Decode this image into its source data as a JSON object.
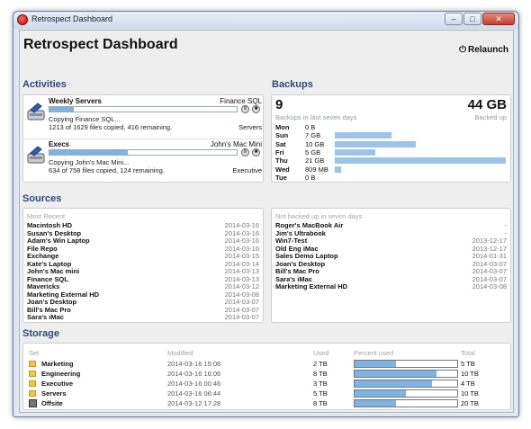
{
  "window": {
    "title": "Retrospect Dashboard"
  },
  "header": {
    "title": "Retrospect Dashboard",
    "relaunch_label": "Relaunch",
    "relaunch_icon": "power-icon"
  },
  "activities": {
    "title": "Activities",
    "jobs": [
      {
        "name": "Weekly Servers",
        "source": "Finance SQL",
        "progress": 0.13,
        "status": "Copying Finance SQL...",
        "detail": "1213 of 1629 files copied, 416 remaining.",
        "destination": "Servers"
      },
      {
        "name": "Execs",
        "source": "John's Mac Mini",
        "progress": 0.42,
        "status": "Copying John's Mac Mini...",
        "detail": "634 of 758 files copied, 124 remaining.",
        "destination": "Executive"
      }
    ]
  },
  "backups": {
    "title": "Backups",
    "count": "9",
    "count_label": "Backups in last seven days",
    "size": "44 GB",
    "size_label": "Backed up",
    "days": [
      {
        "day": "Mon",
        "value": "0 B",
        "gb": 0
      },
      {
        "day": "Sun",
        "value": "7 GB",
        "gb": 7
      },
      {
        "day": "Sat",
        "value": "10 GB",
        "gb": 10
      },
      {
        "day": "Fri",
        "value": "5 GB",
        "gb": 5
      },
      {
        "day": "Thu",
        "value": "21 GB",
        "gb": 21
      },
      {
        "day": "Wed",
        "value": "809 MB",
        "gb": 0.8
      },
      {
        "day": "Tue",
        "value": "0 B",
        "gb": 0
      }
    ]
  },
  "sources": {
    "title": "Sources",
    "recent_header": "Most Recent",
    "recent": [
      {
        "name": "Macintosh HD",
        "date": "2014-03-16"
      },
      {
        "name": "Susan's Desktop",
        "date": "2014-03-16"
      },
      {
        "name": "Adam's Win Laptop",
        "date": "2014-03-16"
      },
      {
        "name": "File Repo",
        "date": "2014-03-16"
      },
      {
        "name": "Exchange",
        "date": "2014-03-15"
      },
      {
        "name": "Kate's Laptop",
        "date": "2014-03-14"
      },
      {
        "name": "John's Mac mini",
        "date": "2014-03-13"
      },
      {
        "name": "Finance SQL",
        "date": "2014-03-13"
      },
      {
        "name": "Mavericks",
        "date": "2014-03-12"
      },
      {
        "name": "Marketing External HD",
        "date": "2014-03-08"
      },
      {
        "name": "Joan's Desktop",
        "date": "2014-03-07"
      },
      {
        "name": "Bill's Mac Pro",
        "date": "2014-03-07"
      },
      {
        "name": "Sara's iMac",
        "date": "2014-03-07"
      }
    ],
    "stale_header": "Not backed up in seven days",
    "stale": [
      {
        "name": "Roger's MacBook Air",
        "date": "-"
      },
      {
        "name": "Jim's Ultrabook",
        "date": "-"
      },
      {
        "name": "Win7-Test",
        "date": "2013-12-17"
      },
      {
        "name": "Old Eng iMac",
        "date": "2013-12-17"
      },
      {
        "name": "Sales Demo Laptop",
        "date": "2014-01-31"
      },
      {
        "name": "Joan's Desktop",
        "date": "2014-03-07"
      },
      {
        "name": "Bill's Mac Pro",
        "date": "2014-03-07"
      },
      {
        "name": "Sara's iMac",
        "date": "2014-03-07"
      },
      {
        "name": "Marketing External HD",
        "date": "2014-03-08"
      }
    ]
  },
  "storage": {
    "title": "Storage",
    "headers": {
      "set": "Set",
      "modified": "Modified",
      "used": "Used",
      "percent": "Percent used",
      "total": "Total"
    },
    "rows": [
      {
        "name": "Marketing",
        "icon": "folder-icon",
        "modified": "2014-03-16 15:08",
        "used": "2 TB",
        "percent": 0.4,
        "total": "5 TB"
      },
      {
        "name": "Engineering",
        "icon": "folder-icon",
        "modified": "2014-03-16 16:06",
        "used": "8 TB",
        "percent": 0.8,
        "total": "10 TB"
      },
      {
        "name": "Executive",
        "icon": "folder-icon",
        "modified": "2014-03-16 00:46",
        "used": "3 TB",
        "percent": 0.75,
        "total": "4 TB"
      },
      {
        "name": "Servers",
        "icon": "folder-icon",
        "modified": "2014-03-16 06:44",
        "used": "5 TB",
        "percent": 0.5,
        "total": "10 TB"
      },
      {
        "name": "Offsite",
        "icon": "server-icon",
        "modified": "2014-03-12 17:28",
        "used": "8 TB",
        "percent": 0.4,
        "total": "20 TB"
      }
    ]
  }
}
